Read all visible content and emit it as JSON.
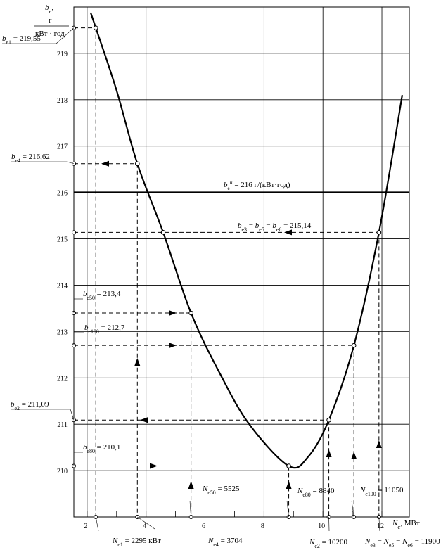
{
  "chart_data": {
    "type": "line",
    "y_axis_label": [
      [
        {
          "i": "b"
        },
        {
          "sub": "e"
        },
        {
          "n": ","
        }
      ],
      [
        {
          "n": "г"
        }
      ],
      [
        {
          "n": "кВт · год"
        }
      ]
    ],
    "x_axis_label": [
      {
        "i": "N"
      },
      {
        "sub": "e"
      },
      {
        "n": ", МВт"
      }
    ],
    "xlim": [
      1.55,
      12.93
    ],
    "xticks": [
      2,
      4,
      6,
      8,
      10,
      12
    ],
    "ylim": [
      209,
      220
    ],
    "yticks": [
      210,
      211,
      212,
      213,
      214,
      215,
      216,
      217,
      218,
      219
    ],
    "grid": true,
    "series": [
      {
        "color": "#000000",
        "x": [
          2.12,
          2.295,
          3.0,
          3.704,
          4.58,
          5.525,
          6.5,
          7.5,
          8.84,
          9.5,
          10.2,
          11.05,
          11.9,
          12.69
        ],
        "values": [
          219.88,
          219.55,
          218.2,
          216.62,
          215.14,
          213.4,
          212.1,
          211.0,
          210.1,
          210.3,
          211.09,
          212.7,
          215.14,
          218.1
        ]
      }
    ],
    "reference": {
      "y": 216,
      "label": [
        {
          "i": "b"
        },
        {
          "sub": "e"
        },
        {
          "sup": "н"
        },
        {
          "n": " = 216 г/(кВт·год)"
        }
      ]
    },
    "points": [
      {
        "x": 2.295,
        "y": 219.55,
        "y_label": [
          {
            "i": "b"
          },
          {
            "sub": "e1"
          },
          {
            "n": " = 219,55"
          }
        ],
        "x_label": [
          {
            "i": "N"
          },
          {
            "sub": "e1"
          },
          {
            "n": " = 2295 кВт"
          }
        ]
      },
      {
        "x": 3.704,
        "y": 216.62,
        "y_label": [
          {
            "i": "b"
          },
          {
            "sub": "e4"
          },
          {
            "n": " = 216,62"
          }
        ],
        "x_label": [
          {
            "i": "N"
          },
          {
            "sub": "e4"
          },
          {
            "n": " = 3704"
          }
        ]
      },
      {
        "x": 4.58,
        "y": 215.14
      },
      {
        "x": 11.9,
        "y": 215.14,
        "y_label": [
          {
            "i": "b"
          },
          {
            "sub": "e3"
          },
          {
            "n": " = "
          },
          {
            "i": "b"
          },
          {
            "sub": "e5"
          },
          {
            "n": " = "
          },
          {
            "i": "b"
          },
          {
            "sub": "e6"
          },
          {
            "n": " = 215,14"
          }
        ],
        "x_label": [
          {
            "i": "N"
          },
          {
            "sub": "e3"
          },
          {
            "n": " = "
          },
          {
            "i": "N"
          },
          {
            "sub": "e5"
          },
          {
            "n": " = "
          },
          {
            "i": "N"
          },
          {
            "sub": "e6"
          },
          {
            "n": " = 11900"
          }
        ]
      },
      {
        "x": 5.525,
        "y": 213.4,
        "y_label": [
          {
            "i": "b"
          },
          {
            "sub": "e50"
          },
          {
            "n": " = 213,4"
          }
        ],
        "x_label": [
          {
            "i": "N"
          },
          {
            "sub": "e50"
          },
          {
            "n": " = 5525"
          }
        ]
      },
      {
        "x": 11.05,
        "y": 212.7,
        "y_label": [
          {
            "i": "b"
          },
          {
            "sub": "e100"
          },
          {
            "n": " = 212,7"
          }
        ],
        "x_label": [
          {
            "i": "N"
          },
          {
            "sub": "e100"
          },
          {
            "n": " = 11050"
          }
        ]
      },
      {
        "x": 10.2,
        "y": 211.09,
        "y_label": [
          {
            "i": "b"
          },
          {
            "sub": "e2"
          },
          {
            "n": " = 211,09"
          }
        ],
        "x_label": [
          {
            "i": "N"
          },
          {
            "sub": "e2"
          },
          {
            "n": " = 10200"
          }
        ]
      },
      {
        "x": 8.84,
        "y": 210.1,
        "y_label": [
          {
            "i": "b"
          },
          {
            "sub": "e80"
          },
          {
            "n": " = 210,1"
          }
        ],
        "x_label": [
          {
            "i": "N"
          },
          {
            "sub": "e80"
          },
          {
            "n": " = 8840"
          }
        ]
      }
    ]
  }
}
